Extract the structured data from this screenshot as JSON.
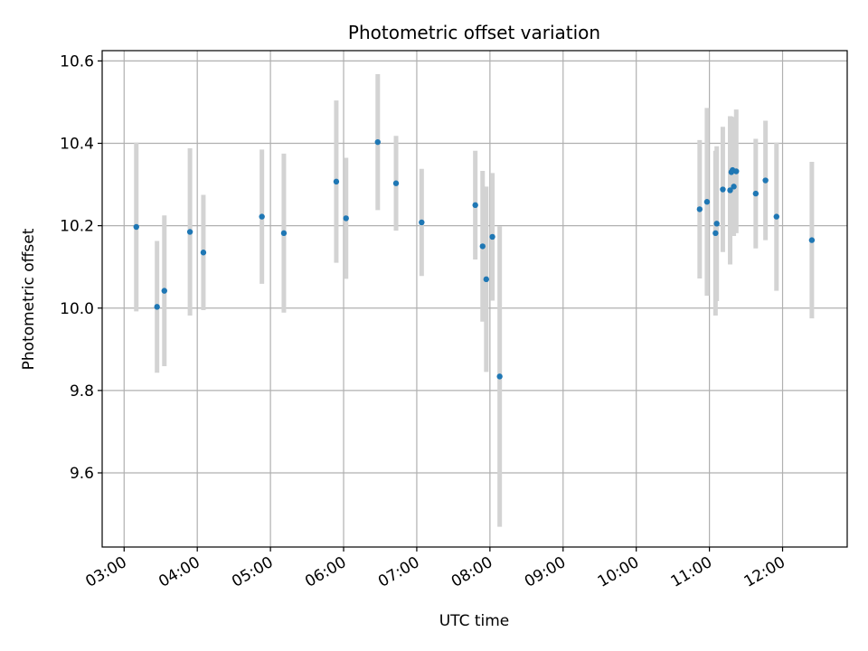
{
  "chart_data": {
    "type": "scatter",
    "title": "Photometric offset variation",
    "xlabel": "UTC time",
    "ylabel": "Photometric offset",
    "xlim": [
      "02:42",
      "12:53"
    ],
    "ylim": [
      9.42,
      10.625
    ],
    "x_ticks": [
      "03:00",
      "04:00",
      "05:00",
      "06:00",
      "07:00",
      "08:00",
      "09:00",
      "10:00",
      "11:00",
      "12:00"
    ],
    "y_ticks": [
      9.6,
      9.8,
      10.0,
      10.2,
      10.4,
      10.6
    ],
    "y_tick_labels": [
      "9.6",
      "9.8",
      "10.0",
      "10.2",
      "10.4",
      "10.6"
    ],
    "grid": true,
    "colors": {
      "points": "#1f77b4",
      "errorbars": "#d3d3d3",
      "grid": "#b0b0b0"
    },
    "points": [
      {
        "x": "03:10",
        "y": 10.197,
        "err": 0.205
      },
      {
        "x": "03:27",
        "y": 10.003,
        "err": 0.16
      },
      {
        "x": "03:33",
        "y": 10.042,
        "err": 0.183
      },
      {
        "x": "03:54",
        "y": 10.185,
        "err": 0.203
      },
      {
        "x": "04:05",
        "y": 10.135,
        "err": 0.14
      },
      {
        "x": "04:53",
        "y": 10.222,
        "err": 0.163
      },
      {
        "x": "05:11",
        "y": 10.182,
        "err": 0.193
      },
      {
        "x": "05:54",
        "y": 10.307,
        "err": 0.197
      },
      {
        "x": "06:02",
        "y": 10.218,
        "err": 0.147
      },
      {
        "x": "06:28",
        "y": 10.403,
        "err": 0.165
      },
      {
        "x": "06:43",
        "y": 10.303,
        "err": 0.115
      },
      {
        "x": "07:04",
        "y": 10.208,
        "err": 0.13
      },
      {
        "x": "07:48",
        "y": 10.25,
        "err": 0.132
      },
      {
        "x": "07:54",
        "y": 10.15,
        "err": 0.183
      },
      {
        "x": "07:57",
        "y": 10.07,
        "err": 0.225
      },
      {
        "x": "08:02",
        "y": 10.173,
        "err": 0.155
      },
      {
        "x": "08:08",
        "y": 9.834,
        "err": 0.365
      },
      {
        "x": "10:52",
        "y": 10.24,
        "err": 0.168
      },
      {
        "x": "10:58",
        "y": 10.258,
        "err": 0.228
      },
      {
        "x": "11:05",
        "y": 10.182,
        "err": 0.2
      },
      {
        "x": "11:06",
        "y": 10.205,
        "err": 0.188
      },
      {
        "x": "11:11",
        "y": 10.288,
        "err": 0.152
      },
      {
        "x": "11:17",
        "y": 10.286,
        "err": 0.18
      },
      {
        "x": "11:18",
        "y": 10.33,
        "err": 0.135
      },
      {
        "x": "11:19",
        "y": 10.335,
        "err": 0.128
      },
      {
        "x": "11:20",
        "y": 10.295,
        "err": 0.12
      },
      {
        "x": "11:22",
        "y": 10.332,
        "err": 0.15
      },
      {
        "x": "11:38",
        "y": 10.278,
        "err": 0.133
      },
      {
        "x": "11:46",
        "y": 10.31,
        "err": 0.145
      },
      {
        "x": "11:55",
        "y": 10.222,
        "err": 0.18
      },
      {
        "x": "12:24",
        "y": 10.165,
        "err": 0.19
      }
    ]
  }
}
